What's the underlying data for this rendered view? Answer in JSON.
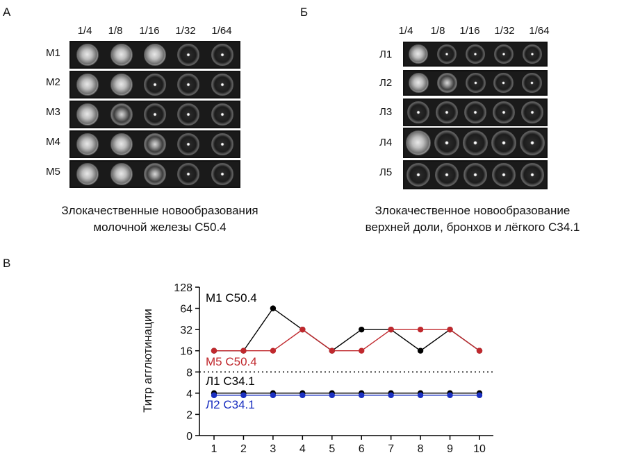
{
  "panel_a": {
    "letter": "А",
    "dilutions": [
      "1/4",
      "1/8",
      "1/16",
      "1/32",
      "1/64"
    ],
    "rows": [
      "М1",
      "М2",
      "М3",
      "М4",
      "М5"
    ],
    "caption_line1": "Злокачественные новообразования",
    "caption_line2": "молочной железы С50.4"
  },
  "panel_b": {
    "letter": "Б",
    "dilutions": [
      "1/4",
      "1/8",
      "1/16",
      "1/32",
      "1/64"
    ],
    "rows": [
      "Л1",
      "Л2",
      "Л3",
      "Л4",
      "Л5"
    ],
    "caption_line1": "Злокачественное новообразование",
    "caption_line2": "верхней доли, бронхов и лёгкого С34.1"
  },
  "panel_c": {
    "letter": "В"
  },
  "chart_data": {
    "type": "line",
    "ylabel": "Титр агглютинации",
    "xlabel": "",
    "x": [
      1,
      2,
      3,
      4,
      5,
      6,
      7,
      8,
      9,
      10
    ],
    "y_scale": "log2",
    "yticks": [
      0,
      2,
      4,
      8,
      16,
      32,
      64,
      128
    ],
    "ylim": [
      0,
      128
    ],
    "threshold": 8,
    "series": [
      {
        "name": "М1 С50.4",
        "color": "#000000",
        "values": [
          16,
          16,
          64,
          32,
          16,
          32,
          32,
          16,
          32,
          16
        ]
      },
      {
        "name": "М5 С50.4",
        "color": "#c0282d",
        "values": [
          16,
          16,
          16,
          32,
          16,
          16,
          32,
          32,
          32,
          16
        ]
      },
      {
        "name": "Л1 С34.1",
        "color": "#000000",
        "values": [
          4,
          4,
          4,
          4,
          4,
          4,
          4,
          4,
          4,
          4
        ]
      },
      {
        "name": "Л2 С34.1",
        "color": "#1a2fc0",
        "values": [
          4,
          4,
          4,
          4,
          4,
          4,
          4,
          4,
          4,
          4
        ]
      }
    ]
  }
}
